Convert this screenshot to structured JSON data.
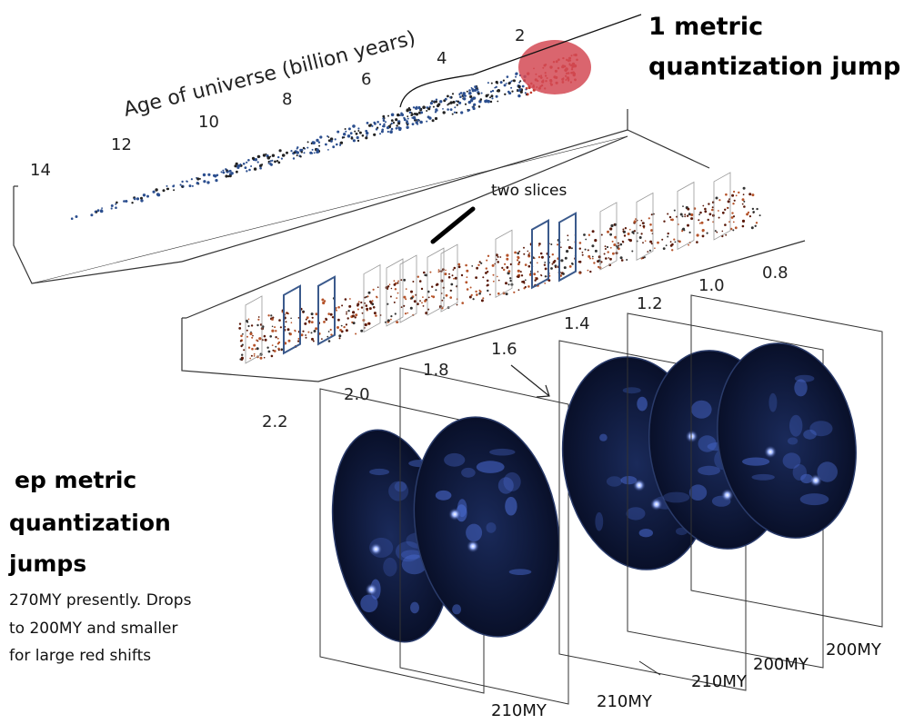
{
  "diagram": {
    "top_axis": {
      "title": "Age of universe (billion years)",
      "ticks": [
        "14",
        "12",
        "10",
        "8",
        "6",
        "4",
        "2"
      ]
    },
    "mid_axis": {
      "ticks": [
        "2.2",
        "2.0",
        "1.8",
        "1.6",
        "1.4",
        "1.2",
        "1.0",
        "0.8"
      ]
    },
    "annotations": {
      "one_metric_line1": "1 metric",
      "one_metric_line2": "quantization jump",
      "two_slices": "two slices",
      "ep_line1": "ep metric",
      "ep_line2": "quantization",
      "ep_line3": "jumps",
      "desc_line1": "270MY presently. Drops",
      "desc_line2": "to 200MY and smaller",
      "desc_line3": "for large red shifts"
    },
    "slice_labels": [
      "210MY",
      "210MY",
      "210MY",
      "200MY",
      "200MY"
    ],
    "colors": {
      "dots_blue": "#2c4f8f",
      "dots_red": "#c0392b",
      "dots_dark": "#5a1a0a",
      "panel_dark": "#0c1530",
      "panel_blob": "#4a6ad0"
    }
  }
}
